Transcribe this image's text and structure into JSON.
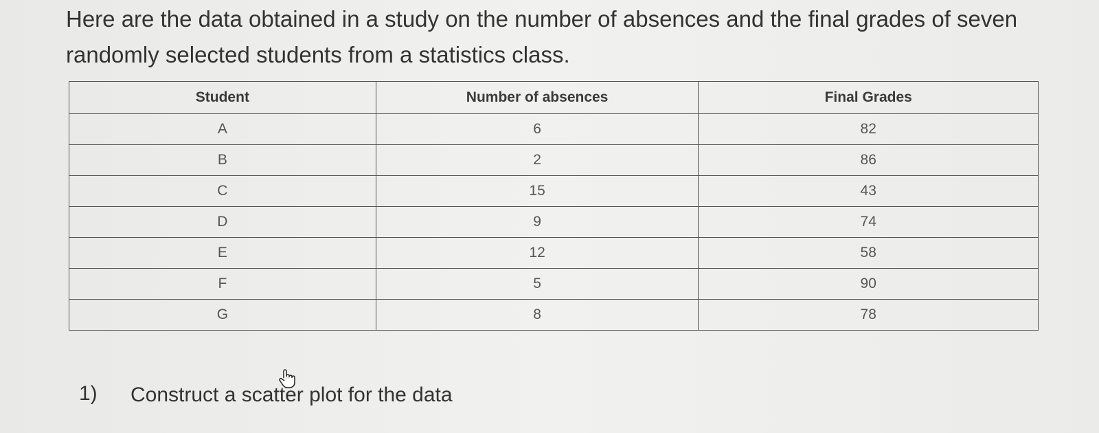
{
  "intro": "Here are the data obtained in a study on the number of absences and the final grades of seven randomly selected students from a statistics class.",
  "table": {
    "headers": [
      "Student",
      "Number of absences",
      "Final Grades"
    ],
    "rows": [
      [
        "A",
        6,
        82
      ],
      [
        "B",
        2,
        86
      ],
      [
        "C",
        15,
        43
      ],
      [
        "D",
        9,
        74
      ],
      [
        "E",
        12,
        58
      ],
      [
        "F",
        5,
        90
      ],
      [
        "G",
        8,
        78
      ]
    ]
  },
  "question": {
    "number": "1)",
    "text": "Construct a scatter plot for the data"
  }
}
